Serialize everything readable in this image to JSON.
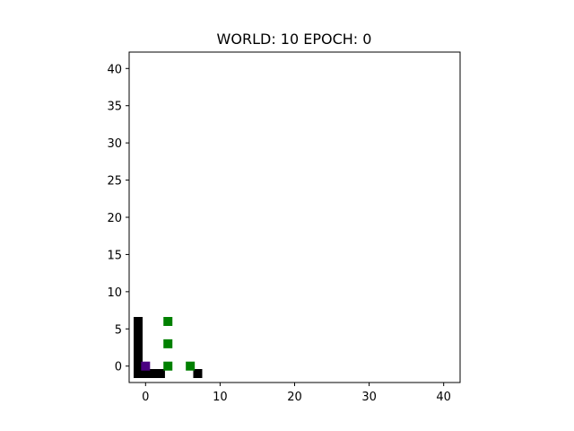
{
  "chart_data": {
    "type": "scatter",
    "title": "WORLD: 10 EPOCH: 0",
    "xlabel": "",
    "ylabel": "",
    "xlim": [
      -1,
      41
    ],
    "ylim": [
      -1,
      41
    ],
    "x_ticks": [
      0,
      10,
      20,
      30,
      40
    ],
    "y_ticks": [
      0,
      5,
      10,
      15,
      20,
      25,
      30,
      35,
      40
    ],
    "grid": false,
    "marker": "square",
    "series": [
      {
        "color": "#000000",
        "points": [
          [
            -1,
            6
          ],
          [
            -1,
            5
          ],
          [
            -1,
            4
          ],
          [
            -1,
            3
          ],
          [
            -1,
            2
          ],
          [
            -1,
            1
          ],
          [
            -1,
            0
          ],
          [
            -1,
            -1
          ],
          [
            0,
            -1
          ],
          [
            1,
            -1
          ],
          [
            2,
            -1
          ],
          [
            7,
            -1
          ]
        ]
      },
      {
        "color": "#008000",
        "points": [
          [
            3,
            6
          ],
          [
            3,
            3
          ],
          [
            3,
            0
          ],
          [
            6,
            0
          ]
        ]
      },
      {
        "color": "#4b0082",
        "points": [
          [
            0,
            0
          ]
        ]
      }
    ]
  }
}
